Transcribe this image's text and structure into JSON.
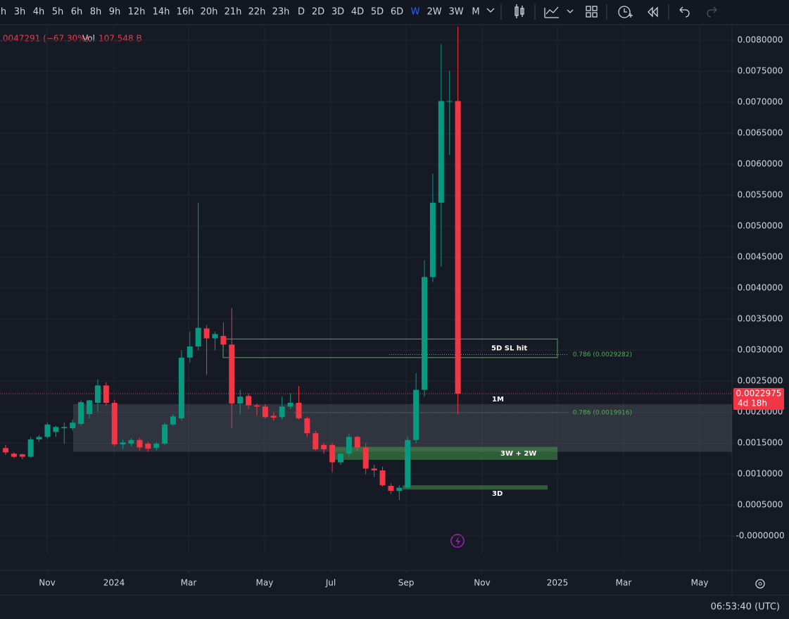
{
  "toolbar": {
    "intervals": [
      "h",
      "3h",
      "4h",
      "5h",
      "6h",
      "8h",
      "9h",
      "12h",
      "14h",
      "16h",
      "20h",
      "21h",
      "22h",
      "23h",
      "D",
      "2D",
      "3D",
      "4D",
      "5D",
      "6D",
      "W",
      "2W",
      "3W",
      "M"
    ],
    "active": "W"
  },
  "legend": {
    "change": ".0047291 (−67.30%)",
    "volume_label": "Vol",
    "volume": "107.548 B"
  },
  "clock": "06:53:40 (UTC)",
  "chart_data": {
    "type": "candlestick",
    "up_color": "#089981",
    "down_color": "#f23645",
    "x": [
      0,
      1,
      2,
      3,
      4,
      5,
      6,
      7,
      8,
      9,
      10,
      11,
      12,
      13,
      14,
      15,
      16,
      17,
      18,
      19,
      20,
      21,
      22,
      23,
      24,
      25,
      26,
      27,
      28,
      29,
      30,
      31,
      32,
      33,
      34,
      35,
      36,
      37,
      38,
      39,
      40,
      41,
      42,
      43,
      44,
      45,
      46,
      47,
      48,
      49,
      50,
      51,
      52,
      53,
      54
    ],
    "open": [
      0.00142,
      0.00133,
      0.00132,
      0.00128,
      0.00156,
      0.0016,
      0.00168,
      0.00174,
      0.00174,
      0.00181,
      0.00197,
      0.00215,
      0.00243,
      0.00215,
      0.00148,
      0.00149,
      0.00155,
      0.00149,
      0.00142,
      0.00149,
      0.0018,
      0.0019,
      0.00288,
      0.00306,
      0.00335,
      0.00319,
      0.00323,
      0.00309,
      0.00214,
      0.00226,
      0.00211,
      0.00209,
      0.00194,
      0.00192,
      0.00209,
      0.00215,
      0.0019,
      0.00166,
      0.00147,
      0.00147,
      0.00119,
      0.00133,
      0.0016,
      0.00143,
      0.00109,
      0.00106,
      0.00081,
      0.00073,
      0.00078,
      0.00155,
      0.00236,
      0.00418,
      0.00538,
      0.00702,
      0.00702
    ],
    "high": [
      0.00147,
      0.00135,
      0.00133,
      0.0016,
      0.00163,
      0.00183,
      0.00178,
      0.00183,
      0.00188,
      0.00219,
      0.0022,
      0.00253,
      0.00248,
      0.0022,
      0.00156,
      0.00158,
      0.00158,
      0.00152,
      0.00152,
      0.00183,
      0.00197,
      0.003,
      0.0033,
      0.00538,
      0.0034,
      0.0033,
      0.00345,
      0.00368,
      0.00236,
      0.0023,
      0.00214,
      0.00213,
      0.002,
      0.00225,
      0.0023,
      0.00242,
      0.00193,
      0.0017,
      0.0015,
      0.0015,
      0.00135,
      0.00165,
      0.00162,
      0.0015,
      0.00115,
      0.00112,
      0.00085,
      0.00082,
      0.0016,
      0.00263,
      0.00445,
      0.00585,
      0.00794,
      0.00751,
      0.00822
    ],
    "low": [
      0.00131,
      0.00126,
      0.00124,
      0.00126,
      0.00152,
      0.00157,
      0.0016,
      0.00149,
      0.0017,
      0.00178,
      0.0019,
      0.002,
      0.0021,
      0.00145,
      0.0014,
      0.00145,
      0.00138,
      0.00136,
      0.00138,
      0.00147,
      0.00178,
      0.00186,
      0.0028,
      0.003,
      0.0026,
      0.003,
      0.00305,
      0.00174,
      0.00196,
      0.00205,
      0.00194,
      0.0019,
      0.00186,
      0.00188,
      0.00205,
      0.00188,
      0.0016,
      0.00138,
      0.00133,
      0.00103,
      0.00115,
      0.00128,
      0.00138,
      0.001,
      0.00095,
      0.0008,
      0.00068,
      0.00058,
      0.00076,
      0.0015,
      0.00225,
      0.0041,
      0.00435,
      0.00615,
      0.00197
    ],
    "close": [
      0.00135,
      0.00128,
      0.00128,
      0.00156,
      0.0016,
      0.0018,
      0.00176,
      0.00176,
      0.00183,
      0.00216,
      0.00219,
      0.00243,
      0.00215,
      0.00148,
      0.00151,
      0.00155,
      0.00143,
      0.00141,
      0.00149,
      0.0018,
      0.00193,
      0.00288,
      0.00306,
      0.00336,
      0.00319,
      0.00326,
      0.00309,
      0.00214,
      0.00225,
      0.00211,
      0.00209,
      0.00192,
      0.00191,
      0.00209,
      0.00215,
      0.0019,
      0.00166,
      0.0014,
      0.0014,
      0.00119,
      0.00133,
      0.0016,
      0.00143,
      0.00109,
      0.00106,
      0.00082,
      0.00073,
      0.00078,
      0.00155,
      0.00236,
      0.00418,
      0.00538,
      0.00702,
      0.00702,
      0.0022975
    ],
    "xlim": [
      -0.67,
      86.72
    ],
    "xticks": [
      {
        "value": 4.96,
        "label": "Nov"
      },
      {
        "value": 12.94,
        "label": "2024"
      },
      {
        "value": 21.85,
        "label": "Mar"
      },
      {
        "value": 30.92,
        "label": "May"
      },
      {
        "value": 38.82,
        "label": "Jul"
      },
      {
        "value": 47.82,
        "label": "Sep"
      },
      {
        "value": 56.89,
        "label": "Nov"
      },
      {
        "value": 65.88,
        "label": "2025"
      },
      {
        "value": 73.78,
        "label": "Mar"
      },
      {
        "value": 82.86,
        "label": "May"
      }
    ],
    "ylim": [
      -0.00027,
      0.00823
    ],
    "yticks": [
      {
        "value": 0,
        "label": "-0.0000000"
      },
      {
        "value": 0.0005,
        "label": "0.0005000"
      },
      {
        "value": 0.001,
        "label": "0.0010000"
      },
      {
        "value": 0.0015,
        "label": "0.0015000"
      },
      {
        "value": 0.002,
        "label": "0.0020000"
      },
      {
        "value": 0.0025,
        "label": "0.0025000"
      },
      {
        "value": 0.003,
        "label": "0.0030000"
      },
      {
        "value": 0.0035,
        "label": "0.0035000"
      },
      {
        "value": 0.004,
        "label": "0.0040000"
      },
      {
        "value": 0.0045,
        "label": "0.0045000"
      },
      {
        "value": 0.005,
        "label": "0.0050000"
      },
      {
        "value": 0.0055,
        "label": "0.0055000"
      },
      {
        "value": 0.006,
        "label": "0.0060000"
      },
      {
        "value": 0.0065,
        "label": "0.0065000"
      },
      {
        "value": 0.007,
        "label": "0.0070000"
      },
      {
        "value": 0.0075,
        "label": "0.0075000"
      },
      {
        "value": 0.008,
        "label": "0.0080000"
      }
    ],
    "grid": true,
    "last_price": {
      "value": 0.0022975,
      "label": "0.0022975",
      "countdown": "4d 18h",
      "color": "#f23645"
    },
    "zones": [
      {
        "label": "5D SL hit",
        "top": 0.00318,
        "bottom": 0.00288,
        "x": [
          25.97,
          65.88
        ],
        "fill": "rgba(0,0,0,0)",
        "stroke": "#4caf50"
      },
      {
        "label": "1M",
        "top": 0.00213,
        "bottom": 0.00136,
        "x": [
          8.07,
          86.72
        ],
        "fill": "rgba(120,123,134,0.28)",
        "stroke": "none"
      },
      {
        "label": "3W + 2W",
        "top": 0.00144,
        "bottom": 0.00123,
        "x": [
          38.82,
          65.88
        ],
        "fill": "rgba(76,175,80,0.45)",
        "stroke": "none"
      },
      {
        "label": "3D",
        "top": 0.00082,
        "bottom": 0.00075,
        "x": [
          47.4,
          64.71
        ],
        "fill": "rgba(76,175,80,0.45)",
        "stroke": "none"
      }
    ],
    "fib_lines": [
      {
        "label": "0.786 (0.0029282)",
        "value": 0.0029282,
        "x": [
          45.8,
          67.2
        ]
      },
      {
        "label": "0.786 (0.0019916)",
        "value": 0.0019916,
        "x": [
          34.5,
          67.2
        ]
      }
    ]
  }
}
